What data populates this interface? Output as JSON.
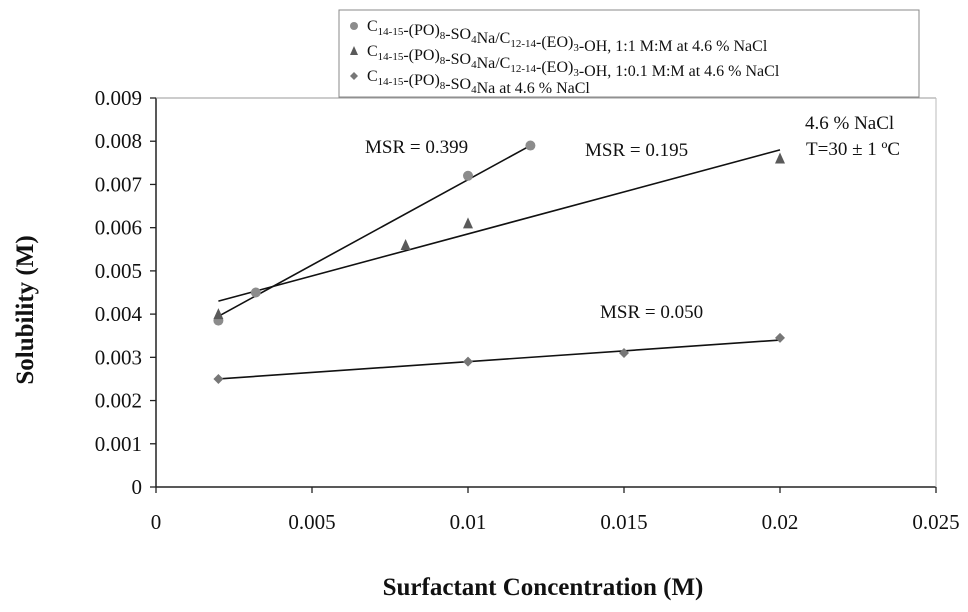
{
  "chart_data": {
    "type": "scatter",
    "xlabel": "Surfactant Concentration (M)",
    "ylabel": "Solubility (M)",
    "xlim": [
      0,
      0.025
    ],
    "ylim": [
      0,
      0.009
    ],
    "x_ticks": [
      {
        "value": 0,
        "label": "0"
      },
      {
        "value": 0.005,
        "label": "0.005"
      },
      {
        "value": 0.01,
        "label": "0.01"
      },
      {
        "value": 0.015,
        "label": "0.015"
      },
      {
        "value": 0.02,
        "label": "0.02"
      },
      {
        "value": 0.025,
        "label": "0.025"
      }
    ],
    "y_ticks": [
      {
        "value": 0,
        "label": "0"
      },
      {
        "value": 0.001,
        "label": "0.001"
      },
      {
        "value": 0.002,
        "label": "0.002"
      },
      {
        "value": 0.003,
        "label": "0.003"
      },
      {
        "value": 0.004,
        "label": "0.004"
      },
      {
        "value": 0.005,
        "label": "0.005"
      },
      {
        "value": 0.006,
        "label": "0.006"
      },
      {
        "value": 0.007,
        "label": "0.007"
      },
      {
        "value": 0.008,
        "label": "0.008"
      },
      {
        "value": 0.009,
        "label": "0.009"
      }
    ],
    "grid": false,
    "legend_position": "top-right",
    "series": [
      {
        "name": "C14-15-(PO)8-SO4Na/C12-14-(EO)3-OH, 1:1 M:M at 4.6 % NaCl",
        "marker": "circle",
        "color": "#8c8c8c",
        "x": [
          0.002,
          0.0032,
          0.01,
          0.012
        ],
        "y": [
          0.00385,
          0.0045,
          0.0072,
          0.0079
        ],
        "fit": {
          "x": [
            0.002,
            0.012
          ],
          "y": [
            0.00395,
            0.0079
          ]
        }
      },
      {
        "name": "C14-15-(PO)8-SO4Na/C12-14-(EO)3-OH, 1:0.1 M:M at 4.6 % NaCl",
        "marker": "triangle",
        "color": "#5a5a5a",
        "x": [
          0.002,
          0.008,
          0.01,
          0.02
        ],
        "y": [
          0.004,
          0.0056,
          0.0061,
          0.0076
        ],
        "fit": {
          "x": [
            0.002,
            0.02
          ],
          "y": [
            0.0043,
            0.0078
          ]
        }
      },
      {
        "name": "C14-15-(PO)8-SO4Na at 4.6 % NaCl",
        "marker": "diamond",
        "color": "#777777",
        "x": [
          0.002,
          0.01,
          0.015,
          0.02
        ],
        "y": [
          0.0025,
          0.0029,
          0.0031,
          0.00345
        ],
        "fit": {
          "x": [
            0.002,
            0.02
          ],
          "y": [
            0.0025,
            0.0034
          ]
        }
      }
    ],
    "legend_entries": [
      {
        "marker": "circle",
        "prefix": "C",
        "sub": "14-15",
        "parts": [
          {
            "t": "-(PO)"
          },
          {
            "t": "8",
            "s": "sub"
          },
          {
            "t": "-SO"
          },
          {
            "t": "4",
            "s": "sub"
          },
          {
            "t": "Na/C"
          },
          {
            "t": "12-14",
            "s": "sub"
          },
          {
            "t": "-(EO)"
          },
          {
            "t": "3",
            "s": "sub"
          },
          {
            "t": "-OH, 1:1 M:M at 4.6 % NaCl"
          }
        ]
      },
      {
        "marker": "triangle",
        "prefix": "C",
        "sub": "14-15",
        "parts": [
          {
            "t": "-(PO)"
          },
          {
            "t": "8",
            "s": "sub"
          },
          {
            "t": "-SO"
          },
          {
            "t": "4",
            "s": "sub"
          },
          {
            "t": "Na/C"
          },
          {
            "t": "12-14",
            "s": "sub"
          },
          {
            "t": "-(EO)"
          },
          {
            "t": "3",
            "s": "sub"
          },
          {
            "t": "-OH, 1:0.1 M:M at 4.6 % NaCl"
          }
        ]
      },
      {
        "marker": "diamond",
        "prefix": "C",
        "sub": "14-15",
        "parts": [
          {
            "t": "-(PO)"
          },
          {
            "t": "8",
            "s": "sub"
          },
          {
            "t": "-SO"
          },
          {
            "t": "4",
            "s": "sub"
          },
          {
            "t": "Na at 4.6 % NaCl"
          }
        ]
      }
    ],
    "annotations": [
      {
        "text": "MSR = 0.399"
      },
      {
        "text": "MSR = 0.195"
      },
      {
        "text": "MSR = 0.050"
      },
      {
        "text": "4.6 % NaCl"
      },
      {
        "text": "T=30 ± 1 ºC"
      }
    ]
  }
}
